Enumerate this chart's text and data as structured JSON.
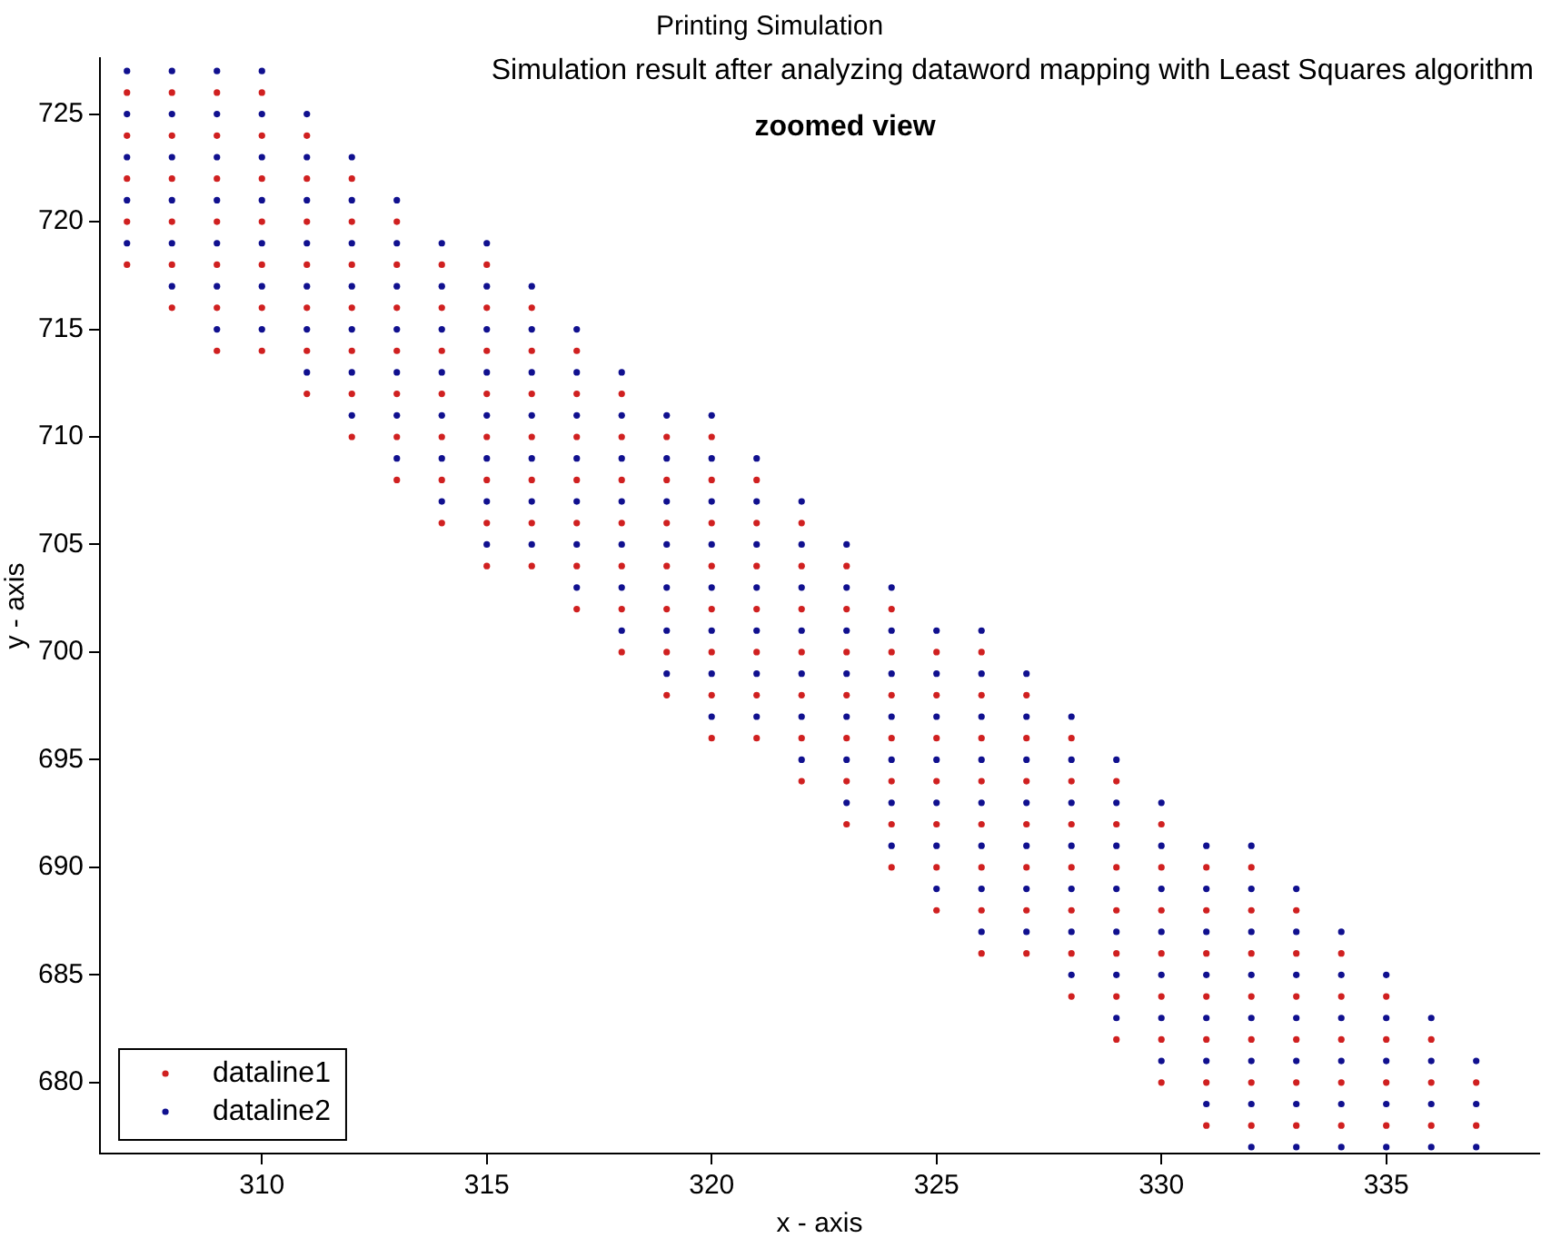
{
  "chart_data": {
    "type": "scatter",
    "title": "Printing Simulation",
    "xlabel": "x - axis",
    "ylabel": "y - axis",
    "annotations": [
      "Simulation result after analyzing dataword mapping with Least Squares algorithm",
      "zoomed view"
    ],
    "xlim": [
      306.4,
      338.4
    ],
    "ylim": [
      676.7,
      727.6
    ],
    "xticks": [
      310,
      315,
      320,
      325,
      330,
      335
    ],
    "yticks": [
      680,
      685,
      690,
      695,
      700,
      705,
      710,
      715,
      720,
      725
    ],
    "grid": false,
    "legend": "bottom left",
    "marker": "circle",
    "series": [
      {
        "name": "dataline1",
        "color": "#d02020",
        "x": [
          307,
          307,
          307,
          307,
          307,
          308,
          308,
          308,
          308,
          308,
          308,
          309,
          309,
          309,
          309,
          309,
          309,
          309,
          310,
          310,
          310,
          310,
          310,
          310,
          310,
          311,
          311,
          311,
          311,
          311,
          311,
          311,
          312,
          312,
          312,
          312,
          312,
          312,
          312,
          313,
          313,
          313,
          313,
          313,
          313,
          313,
          314,
          314,
          314,
          314,
          314,
          314,
          314,
          315,
          315,
          315,
          315,
          315,
          315,
          315,
          315,
          316,
          316,
          316,
          316,
          316,
          316,
          316,
          317,
          317,
          317,
          317,
          317,
          317,
          317,
          318,
          318,
          318,
          318,
          318,
          318,
          318,
          319,
          319,
          319,
          319,
          319,
          319,
          319,
          320,
          320,
          320,
          320,
          320,
          320,
          320,
          320,
          321,
          321,
          321,
          321,
          321,
          321,
          321,
          322,
          322,
          322,
          322,
          322,
          322,
          322,
          323,
          323,
          323,
          323,
          323,
          323,
          323,
          324,
          324,
          324,
          324,
          324,
          324,
          324,
          325,
          325,
          325,
          325,
          325,
          325,
          325,
          326,
          326,
          326,
          326,
          326,
          326,
          326,
          326,
          327,
          327,
          327,
          327,
          327,
          327,
          327,
          328,
          328,
          328,
          328,
          328,
          328,
          328,
          329,
          329,
          329,
          329,
          329,
          329,
          329,
          330,
          330,
          330,
          330,
          330,
          330,
          330,
          331,
          331,
          331,
          331,
          331,
          331,
          331,
          332,
          332,
          332,
          332,
          332,
          332,
          332,
          333,
          333,
          333,
          333,
          333,
          333,
          334,
          334,
          334,
          334,
          334,
          335,
          335,
          335,
          335,
          336,
          336,
          336,
          337,
          337
        ],
        "values": [
          718,
          720,
          722,
          724,
          726,
          716,
          718,
          720,
          722,
          724,
          726,
          714,
          716,
          718,
          720,
          722,
          724,
          726,
          714,
          716,
          718,
          720,
          722,
          724,
          726,
          712,
          714,
          716,
          718,
          720,
          722,
          724,
          710,
          712,
          714,
          716,
          718,
          720,
          722,
          708,
          710,
          712,
          714,
          716,
          718,
          720,
          706,
          708,
          710,
          712,
          714,
          716,
          718,
          704,
          706,
          708,
          710,
          712,
          714,
          716,
          718,
          704,
          706,
          708,
          710,
          712,
          714,
          716,
          702,
          704,
          706,
          708,
          710,
          712,
          714,
          700,
          702,
          704,
          706,
          708,
          710,
          712,
          698,
          700,
          702,
          704,
          706,
          708,
          710,
          696,
          698,
          700,
          702,
          704,
          706,
          708,
          710,
          696,
          698,
          700,
          702,
          704,
          706,
          708,
          694,
          696,
          698,
          700,
          702,
          704,
          706,
          692,
          694,
          696,
          698,
          700,
          702,
          704,
          690,
          692,
          694,
          696,
          698,
          700,
          702,
          688,
          690,
          692,
          694,
          696,
          698,
          700,
          686,
          688,
          690,
          692,
          694,
          696,
          698,
          700,
          686,
          688,
          690,
          692,
          694,
          696,
          698,
          684,
          686,
          688,
          690,
          692,
          694,
          696,
          682,
          684,
          686,
          688,
          690,
          692,
          694,
          680,
          682,
          684,
          686,
          688,
          690,
          692,
          678,
          680,
          682,
          684,
          686,
          688,
          690,
          678,
          680,
          682,
          684,
          686,
          688,
          690,
          678,
          680,
          682,
          684,
          686,
          688,
          678,
          680,
          682,
          684,
          686,
          678,
          680,
          682,
          684,
          678,
          680,
          682,
          678,
          680
        ]
      },
      {
        "name": "dataline2",
        "color": "#10108f",
        "x": [
          307,
          307,
          307,
          307,
          307,
          308,
          308,
          308,
          308,
          308,
          308,
          309,
          309,
          309,
          309,
          309,
          309,
          309,
          310,
          310,
          310,
          310,
          310,
          310,
          310,
          311,
          311,
          311,
          311,
          311,
          311,
          311,
          312,
          312,
          312,
          312,
          312,
          312,
          312,
          313,
          313,
          313,
          313,
          313,
          313,
          313,
          314,
          314,
          314,
          314,
          314,
          314,
          314,
          315,
          315,
          315,
          315,
          315,
          315,
          315,
          315,
          316,
          316,
          316,
          316,
          316,
          316,
          316,
          317,
          317,
          317,
          317,
          317,
          317,
          317,
          318,
          318,
          318,
          318,
          318,
          318,
          318,
          319,
          319,
          319,
          319,
          319,
          319,
          319,
          320,
          320,
          320,
          320,
          320,
          320,
          320,
          320,
          321,
          321,
          321,
          321,
          321,
          321,
          321,
          322,
          322,
          322,
          322,
          322,
          322,
          322,
          323,
          323,
          323,
          323,
          323,
          323,
          323,
          324,
          324,
          324,
          324,
          324,
          324,
          324,
          325,
          325,
          325,
          325,
          325,
          325,
          325,
          326,
          326,
          326,
          326,
          326,
          326,
          326,
          326,
          327,
          327,
          327,
          327,
          327,
          327,
          327,
          328,
          328,
          328,
          328,
          328,
          328,
          328,
          329,
          329,
          329,
          329,
          329,
          329,
          329,
          330,
          330,
          330,
          330,
          330,
          330,
          330,
          331,
          331,
          331,
          331,
          331,
          331,
          331,
          332,
          332,
          332,
          332,
          332,
          332,
          332,
          332,
          333,
          333,
          333,
          333,
          333,
          333,
          333,
          334,
          334,
          334,
          334,
          334,
          334,
          335,
          335,
          335,
          335,
          335,
          336,
          336,
          336,
          336,
          337,
          337,
          337
        ],
        "values": [
          719,
          721,
          723,
          725,
          727,
          717,
          719,
          721,
          723,
          725,
          727,
          715,
          717,
          719,
          721,
          723,
          725,
          727,
          715,
          717,
          719,
          721,
          723,
          725,
          727,
          713,
          715,
          717,
          719,
          721,
          723,
          725,
          711,
          713,
          715,
          717,
          719,
          721,
          723,
          709,
          711,
          713,
          715,
          717,
          719,
          721,
          707,
          709,
          711,
          713,
          715,
          717,
          719,
          705,
          707,
          709,
          711,
          713,
          715,
          717,
          719,
          705,
          707,
          709,
          711,
          713,
          715,
          717,
          703,
          705,
          707,
          709,
          711,
          713,
          715,
          701,
          703,
          705,
          707,
          709,
          711,
          713,
          699,
          701,
          703,
          705,
          707,
          709,
          711,
          697,
          699,
          701,
          703,
          705,
          707,
          709,
          711,
          697,
          699,
          701,
          703,
          705,
          707,
          709,
          695,
          697,
          699,
          701,
          703,
          705,
          707,
          693,
          695,
          697,
          699,
          701,
          703,
          705,
          691,
          693,
          695,
          697,
          699,
          701,
          703,
          689,
          691,
          693,
          695,
          697,
          699,
          701,
          687,
          689,
          691,
          693,
          695,
          697,
          699,
          701,
          687,
          689,
          691,
          693,
          695,
          697,
          699,
          685,
          687,
          689,
          691,
          693,
          695,
          697,
          683,
          685,
          687,
          689,
          691,
          693,
          695,
          681,
          683,
          685,
          687,
          689,
          691,
          693,
          679,
          681,
          683,
          685,
          687,
          689,
          691,
          677,
          679,
          681,
          683,
          685,
          687,
          689,
          691,
          677,
          679,
          681,
          683,
          685,
          687,
          689,
          677,
          679,
          681,
          683,
          685,
          687,
          677,
          679,
          681,
          683,
          685,
          677,
          679,
          681,
          683,
          677,
          679,
          681
        ]
      }
    ]
  }
}
